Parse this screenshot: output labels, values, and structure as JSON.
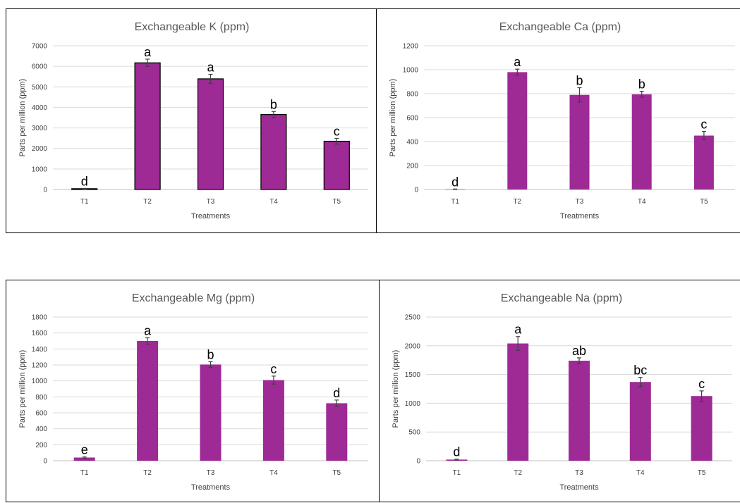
{
  "colors": {
    "bar": "#9e2a96",
    "bar_outline": "#000000"
  },
  "chart_data": [
    {
      "type": "bar",
      "title": "Exchangeable K (ppm)",
      "xlabel": "Treatments",
      "ylabel": "Parts per million (ppm)",
      "categories": [
        "T1",
        "T2",
        "T3",
        "T4",
        "T5"
      ],
      "values": [
        40,
        6170,
        5390,
        3650,
        2350
      ],
      "errors": [
        15,
        180,
        220,
        150,
        140
      ],
      "labels": [
        "d",
        "a",
        "a",
        "b",
        "c"
      ],
      "ylim": [
        0,
        7000
      ],
      "yticks": [
        0,
        1000,
        2000,
        3000,
        4000,
        5000,
        6000,
        7000
      ],
      "ytick_labels": [
        "0",
        "1000",
        "2000",
        "3000",
        "4000",
        "5000",
        "6000",
        "7000"
      ],
      "grid": true,
      "outlined": true
    },
    {
      "type": "bar",
      "title": "Exchangeable Ca (ppm)",
      "xlabel": "Treatments",
      "ylabel": "Parts per million (ppm)",
      "categories": [
        "T1",
        "T2",
        "T3",
        "T4",
        "T5"
      ],
      "values": [
        2,
        980,
        790,
        795,
        450
      ],
      "errors": [
        2,
        25,
        60,
        25,
        35
      ],
      "labels": [
        "d",
        "a",
        "b",
        "b",
        "c"
      ],
      "ylim": [
        0,
        1200
      ],
      "yticks": [
        0,
        200,
        400,
        600,
        800,
        1000,
        1200
      ],
      "ytick_labels": [
        "0",
        "200",
        "400",
        "600",
        "800",
        "1000",
        "1200"
      ],
      "grid": true,
      "outlined": false
    },
    {
      "type": "bar",
      "title": "Exchangeable Mg (ppm)",
      "xlabel": "Treatments",
      "ylabel": "Parts per million (ppm)",
      "categories": [
        "T1",
        "T2",
        "T3",
        "T4",
        "T5"
      ],
      "values": [
        40,
        1500,
        1205,
        1010,
        720
      ],
      "errors": [
        8,
        40,
        35,
        50,
        40
      ],
      "labels": [
        "e",
        "a",
        "b",
        "c",
        "d"
      ],
      "ylim": [
        0,
        1800
      ],
      "yticks": [
        0,
        200,
        400,
        600,
        800,
        1000,
        1200,
        1400,
        1600,
        1800
      ],
      "ytick_labels": [
        "0",
        "200",
        "400",
        "600",
        "800",
        "1000",
        "1200",
        "1400",
        "1600",
        "1800"
      ],
      "grid": true,
      "outlined": false
    },
    {
      "type": "bar",
      "title": "Exchangeable Na (ppm)",
      "xlabel": "Treatments",
      "ylabel": "Parts per million (ppm)",
      "categories": [
        "T1",
        "T2",
        "T3",
        "T4",
        "T5"
      ],
      "values": [
        20,
        2040,
        1740,
        1370,
        1125
      ],
      "errors": [
        8,
        120,
        50,
        80,
        90
      ],
      "labels": [
        "d",
        "a",
        "ab",
        "bc",
        "c"
      ],
      "ylim": [
        0,
        2500
      ],
      "yticks": [
        0,
        500,
        1000,
        1500,
        2000,
        2500
      ],
      "ytick_labels": [
        "0",
        "500",
        "1000",
        "1500",
        "2000",
        "2500"
      ],
      "grid": true,
      "outlined": false
    }
  ]
}
